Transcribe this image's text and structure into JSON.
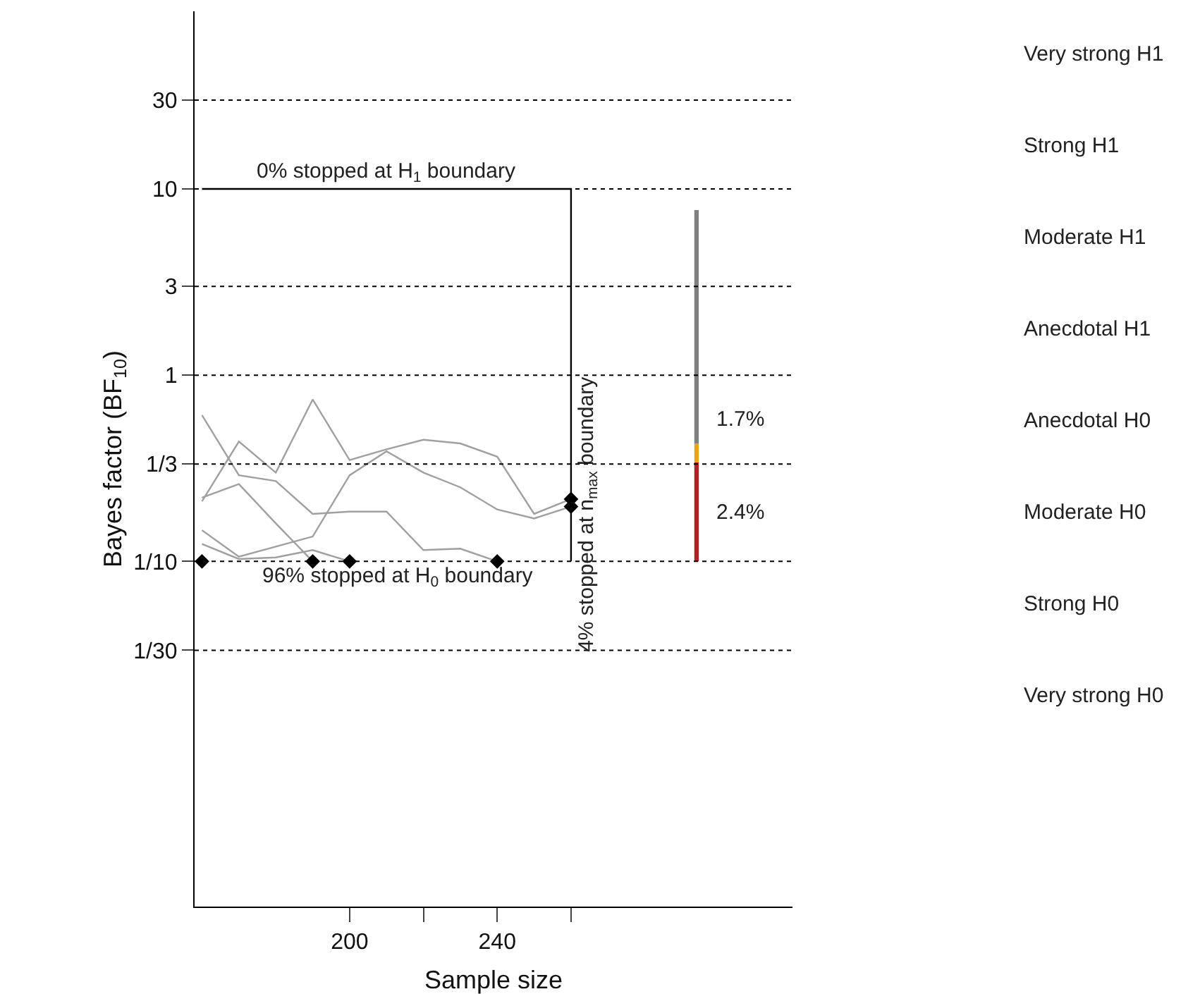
{
  "chart_data": {
    "type": "line",
    "ylabel": "Bayes factor (BF$_{10}$)",
    "xlabel": "Sample size",
    "log": "y",
    "grid": false,
    "xlim": [
      158,
      320
    ],
    "xticks": [
      200,
      {
        "value": 220,
        "label": null
      },
      240,
      {
        "value": 260,
        "label": null
      }
    ],
    "ylim": [
      0.0014,
      90
    ],
    "yticks": [
      {
        "value": 0.0333,
        "label": "1/30"
      },
      {
        "value": 0.1,
        "label": "1/10"
      },
      {
        "value": 0.3333,
        "label": "1/3"
      },
      1,
      3,
      10,
      30
    ],
    "series": [
      {
        "color": "#a0a0a0",
        "x": [
          160,
          170,
          180,
          190,
          200,
          210,
          220,
          230,
          240
        ],
        "values": [
          0.61,
          0.29,
          0.27,
          0.18,
          0.185,
          0.185,
          0.115,
          0.117,
          0.1
        ]
      },
      {
        "color": "#a0a0a0",
        "x": [
          160,
          170,
          180,
          190,
          200,
          210,
          220,
          230,
          240,
          250,
          260
        ],
        "values": [
          0.21,
          0.44,
          0.3,
          0.74,
          0.35,
          0.4,
          0.45,
          0.43,
          0.365,
          0.18,
          0.216
        ]
      },
      {
        "color": "#a0a0a0",
        "x": [
          160,
          170,
          180,
          190
        ],
        "values": [
          0.22,
          0.26,
          0.16,
          0.1
        ]
      },
      {
        "color": "#a0a0a0",
        "x": [
          160,
          170,
          180,
          190,
          200,
          210,
          220,
          230,
          240,
          250,
          260
        ],
        "values": [
          0.147,
          0.106,
          0.12,
          0.136,
          0.29,
          0.39,
          0.3,
          0.25,
          0.19,
          0.17,
          0.197
        ]
      },
      {
        "color": "#a0a0a0",
        "x": [
          160,
          170,
          180,
          190,
          200
        ],
        "values": [
          0.124,
          0.103,
          0.105,
          0.115,
          0.1
        ]
      },
      {
        "color": "#000000",
        "x": [
          160,
          260,
          260
        ],
        "values": [
          10,
          10,
          0.1
        ]
      },
      {
        "type": "scatter",
        "color": "#000000",
        "marker": "diamond",
        "x": [
          160,
          190,
          200,
          240,
          260,
          260
        ],
        "values": [
          0.1,
          0.1,
          0.1,
          0.1,
          0.216,
          0.197
        ]
      },
      {
        "type": "bar",
        "x": [
          294
        ],
        "base": [
          0.1
        ],
        "values": [
          0.24
        ],
        "color": "#b22222"
      },
      {
        "type": "bar",
        "x": [
          294
        ],
        "base": [
          0.34
        ],
        "values": [
          0.09
        ],
        "color": "#e8a317"
      },
      {
        "type": "bar",
        "x": [
          294
        ],
        "base": [
          0.43
        ],
        "values": [
          7.27
        ],
        "color": "#808080"
      }
    ],
    "ref_lines": [
      {
        "axis": "y",
        "value": 30,
        "line_style": "dotted",
        "color": "#000000"
      },
      {
        "axis": "y",
        "value": 10,
        "line_style": "dotted",
        "color": "#000000"
      },
      {
        "axis": "y",
        "value": 3,
        "line_style": "dotted",
        "color": "#000000"
      },
      {
        "axis": "y",
        "value": 1,
        "line_style": "dotted",
        "color": "#000000"
      },
      {
        "axis": "y",
        "value": 0.3333,
        "line_style": "dotted",
        "color": "#000000"
      },
      {
        "axis": "y",
        "value": 0.1,
        "line_style": "dotted",
        "color": "#000000"
      },
      {
        "axis": "y",
        "value": 0.0333,
        "line_style": "dotted",
        "color": "#000000"
      }
    ],
    "annotations": [
      {
        "text": "0% stopped at H$_{1}$ boundary",
        "x": 210,
        "y": 10
      },
      {
        "text": "96% stopped at H$_{0}$ boundary",
        "x": 213,
        "y": 0.1
      },
      {
        "text": "4% stopped at n$_{max}$ boundary",
        "x": 260,
        "y": 0.18
      },
      "Very strong H1",
      "Strong H1",
      "Moderate H1",
      "Anecdotal H1",
      "Anecdotal H0",
      "Moderate H0",
      "Strong H0",
      "Very strong H0",
      "1.7%",
      "2.4%"
    ]
  }
}
